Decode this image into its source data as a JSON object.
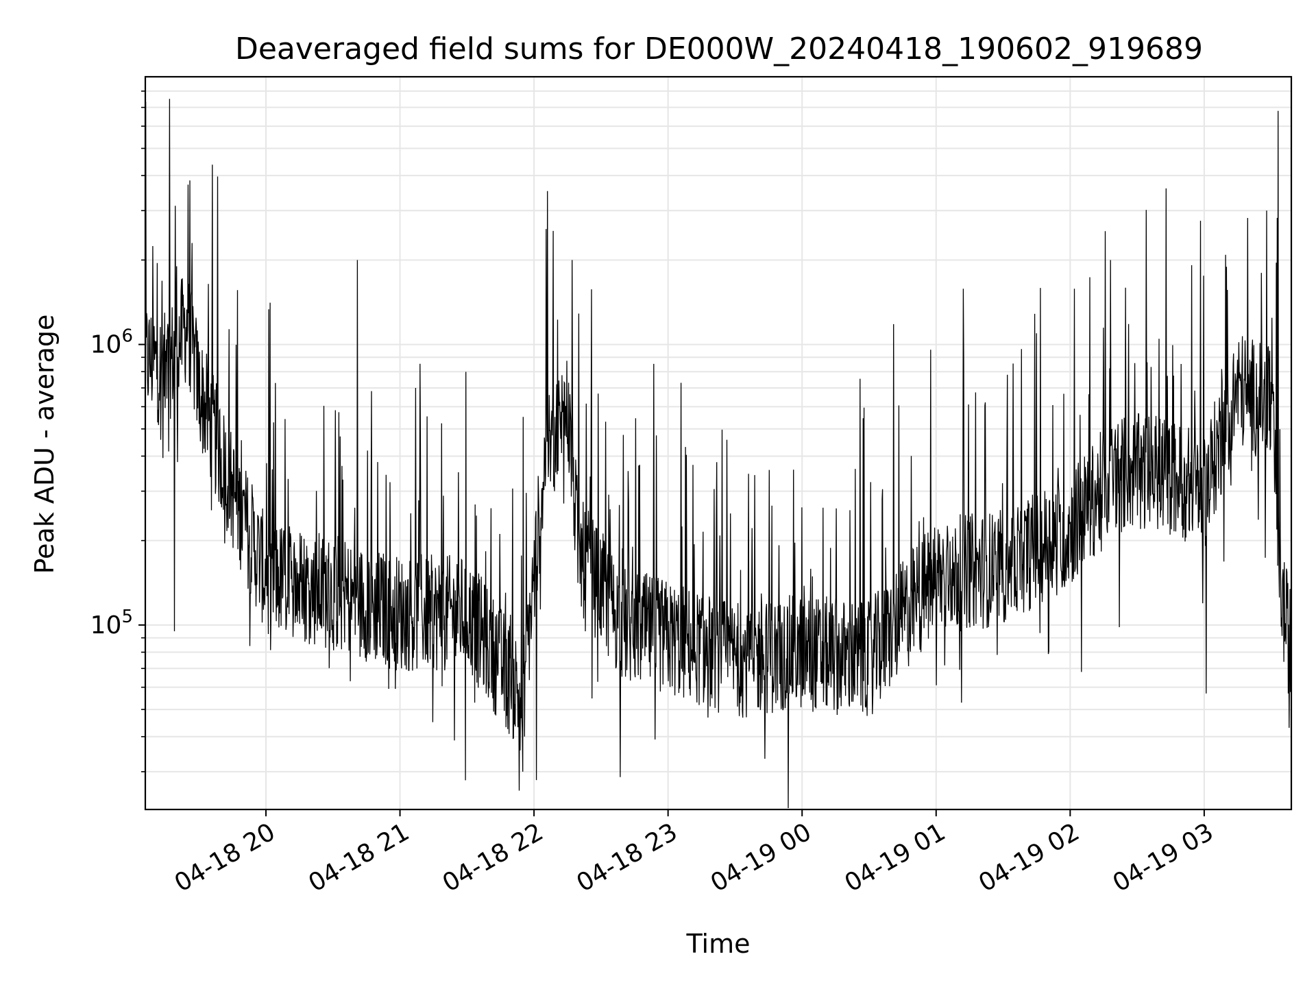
{
  "chart_data": {
    "type": "line",
    "title": "Deaveraged field sums for DE000W_20240418_190602_919689",
    "xlabel": "Time",
    "ylabel": "Peak ADU - average",
    "y_scale": "log",
    "ylim": [
      22000,
      9000000
    ],
    "xlim": [
      "2024-04-18 19:06",
      "2024-04-19 03:39"
    ],
    "grid": true,
    "line_color": "#000000",
    "x_ticks": [
      {
        "t": "2024-04-18 20:00",
        "label": "04-18 20"
      },
      {
        "t": "2024-04-18 21:00",
        "label": "04-18 21"
      },
      {
        "t": "2024-04-18 22:00",
        "label": "04-18 22"
      },
      {
        "t": "2024-04-18 23:00",
        "label": "04-18 23"
      },
      {
        "t": "2024-04-19 00:00",
        "label": "04-19 00"
      },
      {
        "t": "2024-04-19 01:00",
        "label": "04-19 01"
      },
      {
        "t": "2024-04-19 02:00",
        "label": "04-19 02"
      },
      {
        "t": "2024-04-19 03:00",
        "label": "04-19 03"
      }
    ],
    "y_ticks": [
      {
        "value": 100000,
        "base": "10",
        "exp": "5"
      },
      {
        "value": 1000000,
        "base": "10",
        "exp": "6"
      }
    ],
    "series": [
      {
        "baseline": [
          {
            "t": "2024-04-18 19:06",
            "y": 900000
          },
          {
            "t": "2024-04-18 19:15",
            "y": 800000
          },
          {
            "t": "2024-04-18 19:25",
            "y": 1200000
          },
          {
            "t": "2024-04-18 19:30",
            "y": 700000
          },
          {
            "t": "2024-04-18 19:45",
            "y": 300000
          },
          {
            "t": "2024-04-18 20:00",
            "y": 150000
          },
          {
            "t": "2024-04-18 20:30",
            "y": 130000
          },
          {
            "t": "2024-04-18 21:00",
            "y": 110000
          },
          {
            "t": "2024-04-18 21:30",
            "y": 110000
          },
          {
            "t": "2024-04-18 21:55",
            "y": 55000
          },
          {
            "t": "2024-04-18 22:05",
            "y": 400000
          },
          {
            "t": "2024-04-18 22:15",
            "y": 600000
          },
          {
            "t": "2024-04-18 22:20",
            "y": 180000
          },
          {
            "t": "2024-04-18 22:40",
            "y": 100000
          },
          {
            "t": "2024-04-18 23:00",
            "y": 90000
          },
          {
            "t": "2024-04-18 23:30",
            "y": 75000
          },
          {
            "t": "2024-04-19 00:00",
            "y": 80000
          },
          {
            "t": "2024-04-19 00:30",
            "y": 75000
          },
          {
            "t": "2024-04-19 01:00",
            "y": 150000
          },
          {
            "t": "2024-04-19 01:30",
            "y": 160000
          },
          {
            "t": "2024-04-19 02:00",
            "y": 220000
          },
          {
            "t": "2024-04-19 02:20",
            "y": 350000
          },
          {
            "t": "2024-04-19 02:40",
            "y": 350000
          },
          {
            "t": "2024-04-19 03:00",
            "y": 300000
          },
          {
            "t": "2024-04-19 03:15",
            "y": 700000
          },
          {
            "t": "2024-04-19 03:30",
            "y": 600000
          },
          {
            "t": "2024-04-19 03:35",
            "y": 120000
          },
          {
            "t": "2024-04-19 03:39",
            "y": 80000
          }
        ],
        "spikes": [
          {
            "t": "2024-04-18 19:20",
            "y": 1900000
          },
          {
            "t": "2024-04-18 19:27",
            "y": 2300000
          },
          {
            "t": "2024-04-18 20:41",
            "y": 2000000
          },
          {
            "t": "2024-04-18 22:17",
            "y": 2000000
          },
          {
            "t": "2024-04-19 02:18",
            "y": 2000000
          },
          {
            "t": "2024-04-19 02:43",
            "y": 3600000
          },
          {
            "t": "2024-04-19 03:28",
            "y": 3000000
          },
          {
            "t": "2024-04-19 03:33",
            "y": 6800000
          }
        ],
        "dips": [
          {
            "t": "2024-04-18 19:19",
            "y": 95000
          },
          {
            "t": "2024-04-18 21:55",
            "y": 30000
          },
          {
            "t": "2024-04-18 22:01",
            "y": 28000
          },
          {
            "t": "2024-04-19 02:05",
            "y": 68000
          },
          {
            "t": "2024-04-19 03:01",
            "y": 57000
          },
          {
            "t": "2024-04-19 03:38",
            "y": 43000
          }
        ]
      }
    ]
  }
}
